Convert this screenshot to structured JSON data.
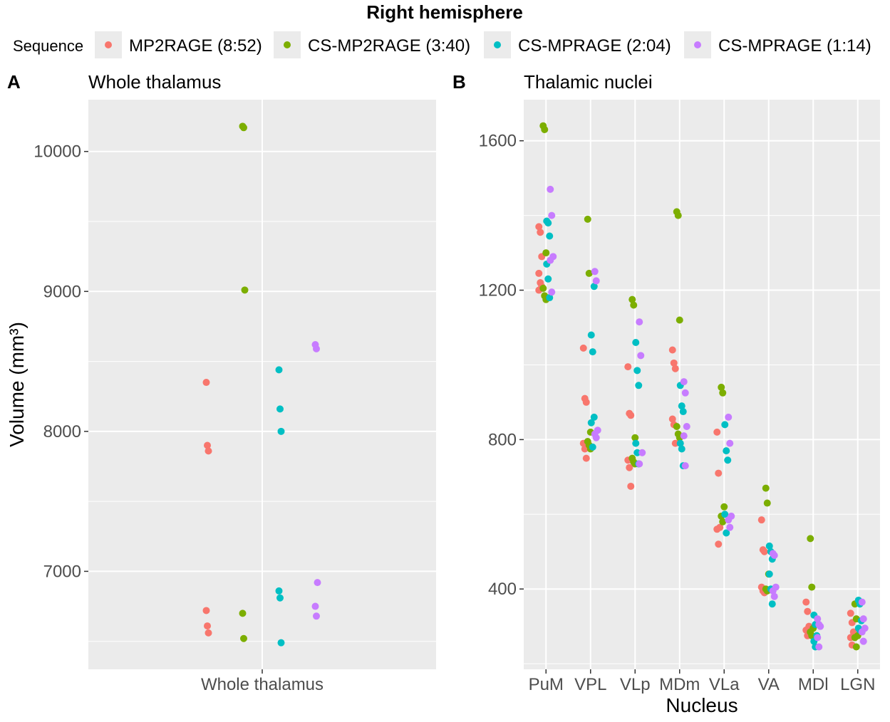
{
  "figure_title": "Right hemisphere",
  "legend": {
    "title": "Sequence",
    "items": [
      {
        "label": "MP2RAGE (8:52)",
        "color": "#F8766D"
      },
      {
        "label": "CS-MP2RAGE (3:40)",
        "color": "#7CAE00"
      },
      {
        "label": "CS-MPRAGE (2:04)",
        "color": "#00BFC4"
      },
      {
        "label": "CS-MPRAGE (1:14)",
        "color": "#C77CFF"
      }
    ]
  },
  "y_axis_title": "Volume (mm³)",
  "chart_data": [
    {
      "panel": "A",
      "title": "Whole thalamus",
      "type": "scatter",
      "categories": [
        "Whole thalamus"
      ],
      "xlabel": "",
      "ylabel": "Volume (mm³)",
      "ylim": [
        6300,
        10370
      ],
      "yticks": [
        7000,
        8000,
        9000,
        10000
      ],
      "ytick_labels": [
        "7000",
        "8000",
        "9000",
        "10000"
      ],
      "series": [
        {
          "name": "MP2RAGE (8:52)",
          "points": [
            {
              "category": "Whole thalamus",
              "values": [
                8350,
                7900,
                7860,
                6720,
                6610,
                6560
              ]
            }
          ]
        },
        {
          "name": "CS-MP2RAGE (3:40)",
          "points": [
            {
              "category": "Whole thalamus",
              "values": [
                10180,
                10170,
                9010,
                6700,
                6520
              ]
            }
          ]
        },
        {
          "name": "CS-MPRAGE (2:04)",
          "points": [
            {
              "category": "Whole thalamus",
              "values": [
                8440,
                8160,
                8000,
                6860,
                6810,
                6490
              ]
            }
          ]
        },
        {
          "name": "CS-MPRAGE (1:14)",
          "points": [
            {
              "category": "Whole thalamus",
              "values": [
                8620,
                8590,
                6920,
                6750,
                6680
              ]
            }
          ]
        }
      ]
    },
    {
      "panel": "B",
      "title": "Thalamic nuclei",
      "type": "scatter",
      "categories": [
        "PuM",
        "VPL",
        "VLp",
        "MDm",
        "VLa",
        "VA",
        "MDl",
        "LGN"
      ],
      "xlabel": "Nucleus",
      "ylabel": "Volume (mm³)",
      "ylim": [
        185,
        1710
      ],
      "yticks": [
        400,
        800,
        1200,
        1600
      ],
      "ytick_labels": [
        "400",
        "800",
        "1200",
        "1600"
      ],
      "series": [
        {
          "name": "MP2RAGE (8:52)",
          "points": [
            {
              "category": "PuM",
              "values": [
                1370,
                1355,
                1290,
                1245,
                1220,
                1210,
                1200
              ]
            },
            {
              "category": "VPL",
              "values": [
                1045,
                910,
                900,
                790,
                775,
                750
              ]
            },
            {
              "category": "VLp",
              "values": [
                995,
                870,
                865,
                745,
                725,
                675
              ]
            },
            {
              "category": "MDm",
              "values": [
                1040,
                1005,
                990,
                855,
                840,
                790
              ]
            },
            {
              "category": "VLa",
              "values": [
                820,
                710,
                565,
                560,
                520
              ]
            },
            {
              "category": "VA",
              "values": [
                585,
                505,
                500,
                405,
                395,
                390
              ]
            },
            {
              "category": "MDl",
              "values": [
                365,
                340,
                300,
                290,
                275
              ]
            },
            {
              "category": "LGN",
              "values": [
                335,
                310,
                285,
                270,
                250
              ]
            }
          ]
        },
        {
          "name": "CS-MP2RAGE (3:40)",
          "points": [
            {
              "category": "PuM",
              "values": [
                1640,
                1630,
                1300,
                1205,
                1185,
                1175
              ]
            },
            {
              "category": "VPL",
              "values": [
                1390,
                1245,
                820,
                795,
                785,
                775
              ]
            },
            {
              "category": "VLp",
              "values": [
                1175,
                1160,
                805,
                750,
                740,
                735
              ]
            },
            {
              "category": "MDm",
              "values": [
                1410,
                1400,
                1120,
                835,
                815,
                805
              ]
            },
            {
              "category": "VLa",
              "values": [
                940,
                925,
                620,
                595,
                580
              ]
            },
            {
              "category": "VA",
              "values": [
                670,
                630,
                440,
                400,
                395
              ]
            },
            {
              "category": "MDl",
              "values": [
                535,
                405,
                295,
                285,
                275
              ]
            },
            {
              "category": "LGN",
              "values": [
                360,
                320,
                275,
                270,
                245
              ]
            }
          ]
        },
        {
          "name": "CS-MPRAGE (2:04)",
          "points": [
            {
              "category": "PuM",
              "values": [
                1385,
                1380,
                1345,
                1270,
                1230,
                1180
              ]
            },
            {
              "category": "VPL",
              "values": [
                1080,
                1035,
                860,
                845,
                780,
                1210
              ]
            },
            {
              "category": "VLp",
              "values": [
                1060,
                985,
                945,
                790,
                765,
                735
              ]
            },
            {
              "category": "MDm",
              "values": [
                945,
                890,
                875,
                790,
                775,
                730
              ]
            },
            {
              "category": "VLa",
              "values": [
                840,
                770,
                745,
                600,
                550
              ]
            },
            {
              "category": "VA",
              "values": [
                515,
                500,
                480,
                440,
                400,
                360
              ]
            },
            {
              "category": "MDl",
              "values": [
                330,
                305,
                275,
                260,
                245
              ]
            },
            {
              "category": "LGN",
              "values": [
                370,
                360,
                315,
                295,
                290
              ]
            }
          ]
        },
        {
          "name": "CS-MPRAGE (1:14)",
          "points": [
            {
              "category": "PuM",
              "values": [
                1470,
                1400,
                1290,
                1280,
                1195
              ]
            },
            {
              "category": "VPL",
              "values": [
                1250,
                1225,
                825,
                815,
                805
              ]
            },
            {
              "category": "VLp",
              "values": [
                1115,
                1025,
                765,
                735
              ]
            },
            {
              "category": "MDm",
              "values": [
                955,
                925,
                835,
                810,
                730
              ]
            },
            {
              "category": "VLa",
              "values": [
                860,
                790,
                595,
                585,
                565
              ]
            },
            {
              "category": "VA",
              "values": [
                495,
                490,
                405,
                395,
                380
              ]
            },
            {
              "category": "MDl",
              "values": [
                320,
                305,
                300,
                270,
                245
              ]
            },
            {
              "category": "LGN",
              "values": [
                365,
                320,
                295,
                285,
                260
              ]
            }
          ]
        }
      ]
    }
  ]
}
